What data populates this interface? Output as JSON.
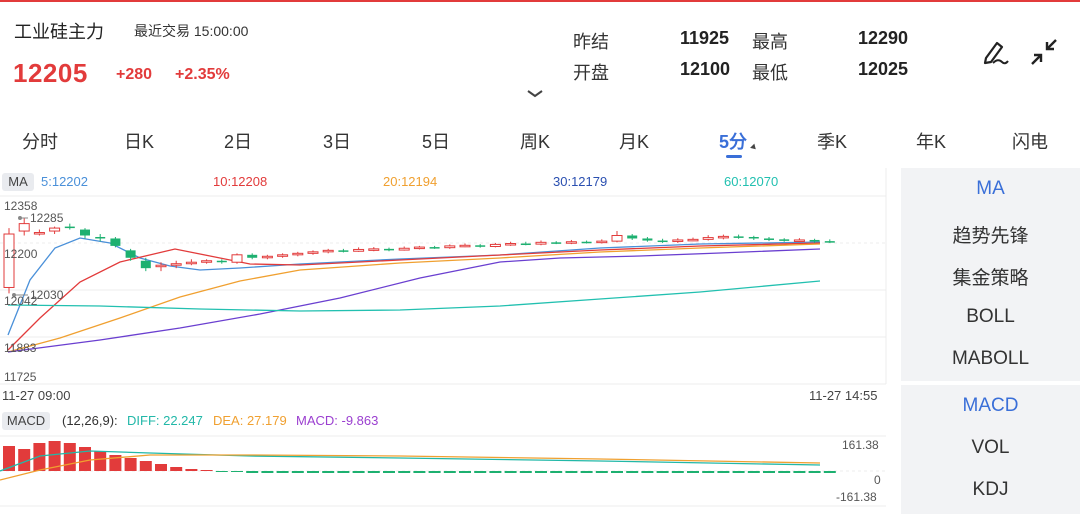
{
  "header": {
    "title": "工业硅主力",
    "latest_trade": "最近交易  15:00:00",
    "price": "12205",
    "change": "+280",
    "change_pct": "+2.35%"
  },
  "stats": {
    "prev_settle_label": "昨结",
    "prev_settle": "11925",
    "high_label": "最高",
    "high": "12290",
    "open_label": "开盘",
    "open": "12100",
    "low_label": "最低",
    "low": "12025"
  },
  "tabs": [
    {
      "label": "分时"
    },
    {
      "label": "日K"
    },
    {
      "label": "2日"
    },
    {
      "label": "3日"
    },
    {
      "label": "5日"
    },
    {
      "label": "周K"
    },
    {
      "label": "月K"
    },
    {
      "label": "5分",
      "active": true
    },
    {
      "label": "季K"
    },
    {
      "label": "年K"
    },
    {
      "label": "闪电"
    }
  ],
  "ma_legend": {
    "badge": "MA",
    "items": [
      {
        "text": "5:12202",
        "color": "#4a90d9"
      },
      {
        "text": "10:12208",
        "color": "#e23b3b"
      },
      {
        "text": "20:12194",
        "color": "#f0a030"
      },
      {
        "text": "30:12179",
        "color": "#2a4fb0"
      },
      {
        "text": "60:12070",
        "color": "#22c0b0"
      }
    ]
  },
  "price_axis": {
    "top": "12358",
    "high_mark": "12285",
    "mid": "12200",
    "low_mark": "12030",
    "mid2": "12042",
    "lower": "11883",
    "bottom": "11725"
  },
  "time_axis": {
    "start": "11-27 09:00",
    "end": "11-27 14:55"
  },
  "macd_legend": {
    "badge": "MACD",
    "params": "(12,26,9):",
    "diff": "DIFF: 22.247",
    "dea": "DEA: 27.179",
    "macd": "MACD: -9.863"
  },
  "macd_axis": {
    "top": "161.38",
    "zero": "0",
    "bottom": "-161.38"
  },
  "side_indicators_main": [
    {
      "label": "MA",
      "active": true
    },
    {
      "label": "趋势先锋"
    },
    {
      "label": "集金策略"
    },
    {
      "label": "BOLL"
    },
    {
      "label": "MABOLL"
    }
  ],
  "side_indicators_sub": [
    {
      "label": "MACD",
      "active": true
    },
    {
      "label": "VOL"
    },
    {
      "label": "KDJ"
    }
  ],
  "colors": {
    "up": "#e23b3b",
    "down": "#1db070",
    "accent": "#3a6fd8"
  },
  "icons": {
    "draw_tool": "pen-draw-icon",
    "collapse": "collapse-arrows-icon",
    "expand": "chevron-down-icon"
  }
}
